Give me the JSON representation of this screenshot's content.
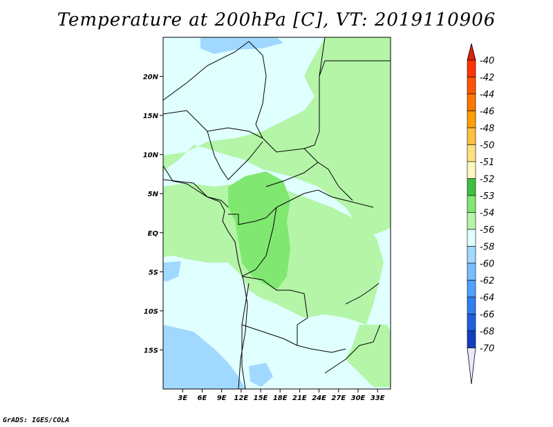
{
  "title": "Temperature at 200hPa [C], VT: 2019110906",
  "credit": "GrADS: IGES/COLA",
  "map": {
    "lon_range": [
      0,
      35
    ],
    "lat_range": [
      -20,
      25
    ],
    "lat_ticks": [
      {
        "value": 20,
        "label": "20N"
      },
      {
        "value": 15,
        "label": "15N"
      },
      {
        "value": 10,
        "label": "10N"
      },
      {
        "value": 5,
        "label": "5N"
      },
      {
        "value": 0,
        "label": "EQ"
      },
      {
        "value": -5,
        "label": "5S"
      },
      {
        "value": -10,
        "label": "10S"
      },
      {
        "value": -15,
        "label": "15S"
      }
    ],
    "lon_ticks": [
      {
        "value": 3,
        "label": "3E"
      },
      {
        "value": 6,
        "label": "6E"
      },
      {
        "value": 9,
        "label": "9E"
      },
      {
        "value": 12,
        "label": "12E"
      },
      {
        "value": 15,
        "label": "15E"
      },
      {
        "value": 18,
        "label": "18E"
      },
      {
        "value": 21,
        "label": "21E"
      },
      {
        "value": 24,
        "label": "24E"
      },
      {
        "value": 27,
        "label": "27E"
      },
      {
        "value": 30,
        "label": "30E"
      },
      {
        "value": 33,
        "label": "33E"
      }
    ]
  },
  "colorbar": {
    "levels": [
      {
        "label": "-40",
        "color": "#ff3300"
      },
      {
        "label": "-42",
        "color": "#ff5500"
      },
      {
        "label": "-44",
        "color": "#ff7700"
      },
      {
        "label": "-46",
        "color": "#ffa000"
      },
      {
        "label": "-48",
        "color": "#ffc040"
      },
      {
        "label": "-50",
        "color": "#ffe080"
      },
      {
        "label": "-51",
        "color": "#fff9c0"
      },
      {
        "label": "-52",
        "color": "#40c040"
      },
      {
        "label": "-53",
        "color": "#80e870"
      },
      {
        "label": "-54",
        "color": "#b4f5a8"
      },
      {
        "label": "-56",
        "color": "#e0ffff"
      },
      {
        "label": "-58",
        "color": "#a0d8ff"
      },
      {
        "label": "-60",
        "color": "#78beff"
      },
      {
        "label": "-62",
        "color": "#50a0ff"
      },
      {
        "label": "-64",
        "color": "#3080f0"
      },
      {
        "label": "-66",
        "color": "#1e60e0"
      },
      {
        "label": "-68",
        "color": "#1040c0"
      },
      {
        "label": "-70",
        "color": "#0a1e80"
      }
    ],
    "top_color": "#e02010",
    "bottom_color": "#e8e8ff"
  },
  "fill_colors": {
    "base": "#e0ffff",
    "light_green": "#b4f5a8",
    "mid_green": "#80e870",
    "light_blue": "#a0d8ff"
  }
}
